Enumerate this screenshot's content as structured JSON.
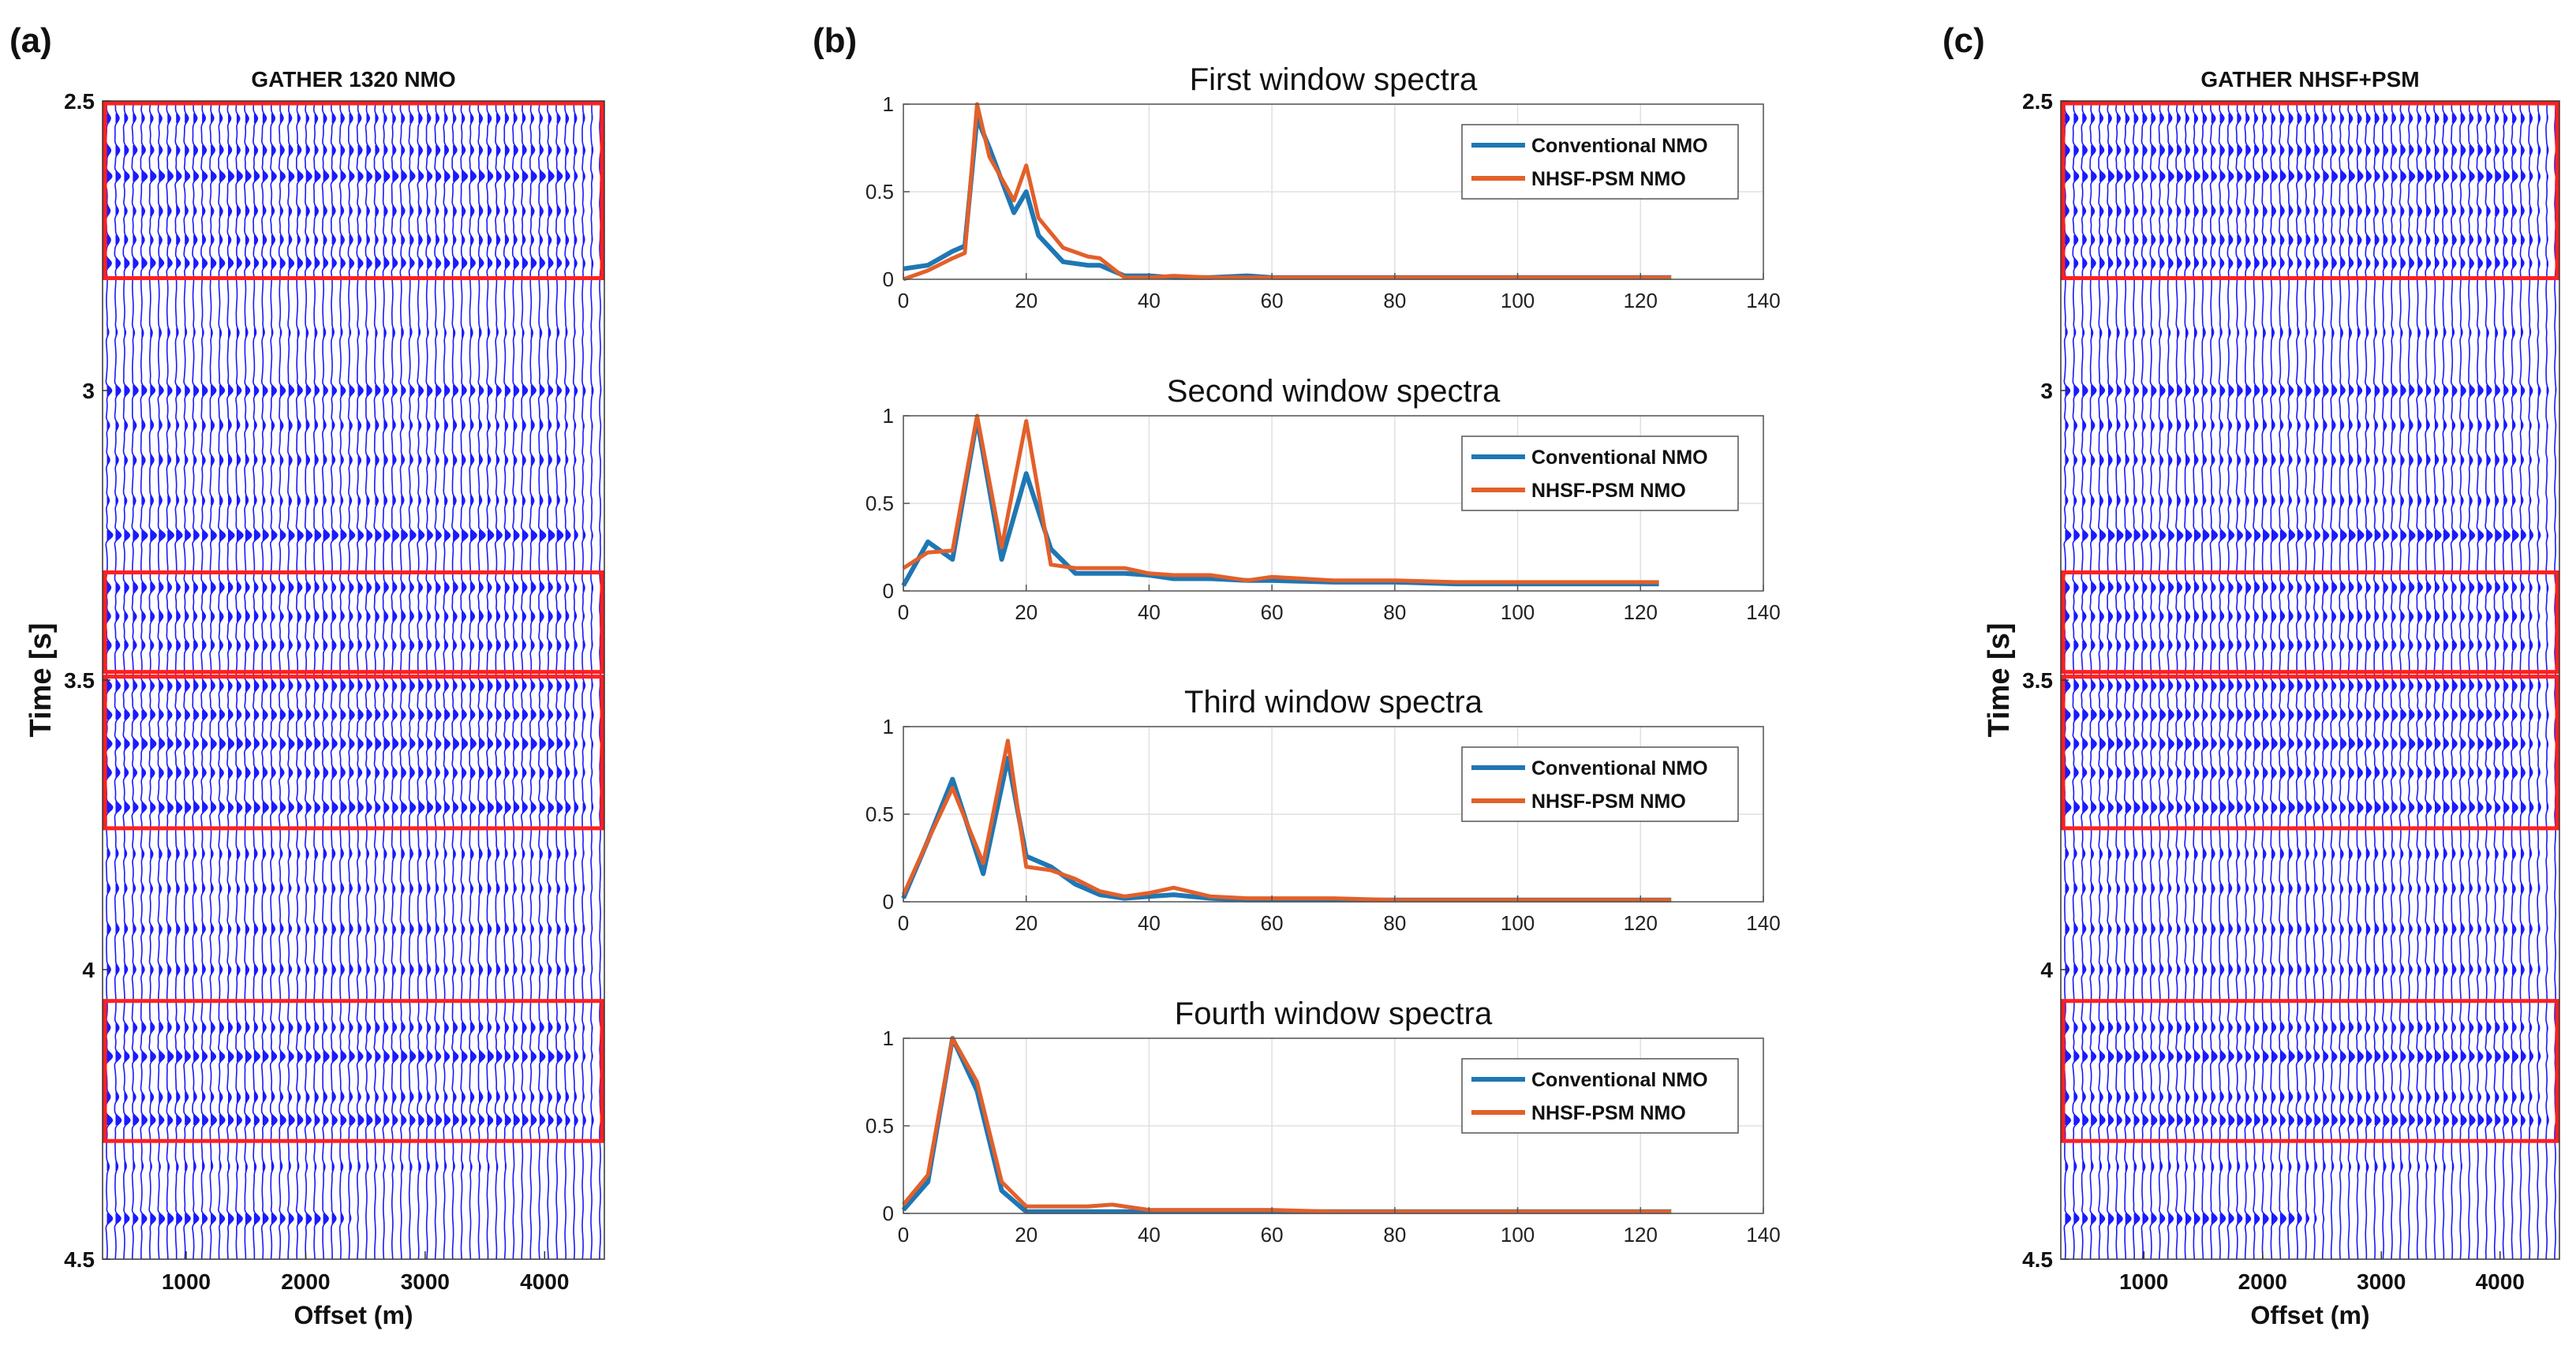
{
  "panel_labels": [
    "(a)",
    "(b)",
    "(c)"
  ],
  "colors": {
    "wiggle": "#1a1aff",
    "box": "#ff2020",
    "conventional": "#1f77b4",
    "nhsf": "#e2602a",
    "grid": "#e0e0e0",
    "axis": "#333333"
  },
  "chart_data": [
    {
      "type": "seismic-gather",
      "panel": "(a)",
      "title": "GATHER 1320 NMO",
      "xlabel": "Offset (m)",
      "ylabel": "Time [s]",
      "xlim": [
        300,
        4500
      ],
      "ylim": [
        2.5,
        4.5
      ],
      "xticks": [
        1000,
        2000,
        3000,
        4000
      ],
      "yticks": [
        2.5,
        3,
        3.5,
        4,
        4.5
      ],
      "ytick_labels": [
        "2.5",
        "3",
        "3.5",
        "4",
        "4.5"
      ],
      "highlight_windows": [
        [
          2.5,
          2.81
        ],
        [
          3.31,
          3.49
        ],
        [
          3.49,
          3.76
        ],
        [
          4.05,
          4.3
        ]
      ],
      "events": [
        {
          "t": 2.53,
          "amp": 0.6,
          "end": 4500
        },
        {
          "t": 2.585,
          "amp": 0.7,
          "end": 4500
        },
        {
          "t": 2.63,
          "amp": 1.0,
          "end": 4500
        },
        {
          "t": 2.69,
          "amp": 0.6,
          "end": 4500
        },
        {
          "t": 2.74,
          "amp": 0.6,
          "end": 4500
        },
        {
          "t": 2.78,
          "amp": 0.9,
          "end": 4500
        },
        {
          "t": 2.9,
          "amp": 0.35,
          "end": 4500
        },
        {
          "t": 3.0,
          "amp": 0.9,
          "end": 4500
        },
        {
          "t": 3.06,
          "amp": 0.55,
          "end": 4500
        },
        {
          "t": 3.12,
          "amp": 0.6,
          "end": 4500
        },
        {
          "t": 3.19,
          "amp": 0.5,
          "end": 4500
        },
        {
          "t": 3.25,
          "amp": 1.1,
          "end": 4500
        },
        {
          "t": 3.34,
          "amp": 0.8,
          "end": 4500
        },
        {
          "t": 3.39,
          "amp": 0.7,
          "end": 4500
        },
        {
          "t": 3.44,
          "amp": 0.7,
          "end": 4500
        },
        {
          "t": 3.51,
          "amp": 0.8,
          "end": 4500
        },
        {
          "t": 3.56,
          "amp": 0.9,
          "end": 4500
        },
        {
          "t": 3.61,
          "amp": 1.0,
          "end": 4500
        },
        {
          "t": 3.66,
          "amp": 0.8,
          "end": 4500
        },
        {
          "t": 3.72,
          "amp": 1.0,
          "end": 4500
        },
        {
          "t": 3.8,
          "amp": 0.5,
          "end": 4500
        },
        {
          "t": 3.86,
          "amp": 0.5,
          "end": 4500
        },
        {
          "t": 3.93,
          "amp": 0.6,
          "end": 4500
        },
        {
          "t": 4.0,
          "amp": 0.6,
          "end": 4500
        },
        {
          "t": 4.1,
          "amp": 0.7,
          "end": 4500
        },
        {
          "t": 4.15,
          "amp": 1.0,
          "end": 4500
        },
        {
          "t": 4.22,
          "amp": 0.6,
          "end": 4500
        },
        {
          "t": 4.26,
          "amp": 1.0,
          "end": 4500
        },
        {
          "t": 4.34,
          "amp": 0.35,
          "end": 3800
        },
        {
          "t": 4.43,
          "amp": 1.0,
          "end": 2500
        }
      ]
    },
    {
      "type": "line",
      "panel": "(b)",
      "title": "First window spectra",
      "xlim": [
        0,
        140
      ],
      "ylim": [
        0,
        1
      ],
      "xticks": [
        0,
        20,
        40,
        60,
        80,
        100,
        120,
        140
      ],
      "yticks": [
        0,
        0.5,
        1
      ],
      "ytick_labels": [
        "0",
        "0.5",
        "1"
      ],
      "legend_loc": "top-right",
      "series": [
        {
          "name": "Conventional NMO",
          "color": "#1f77b4",
          "x": [
            0,
            4,
            8,
            10,
            12,
            14,
            18,
            20,
            22,
            26,
            30,
            32,
            36,
            40,
            44,
            50,
            56,
            60,
            70,
            80,
            90,
            100,
            110,
            120,
            125
          ],
          "y": [
            0.06,
            0.08,
            0.16,
            0.19,
            0.92,
            0.75,
            0.38,
            0.5,
            0.25,
            0.1,
            0.08,
            0.08,
            0.02,
            0.02,
            0.01,
            0.01,
            0.02,
            0.01,
            0.01,
            0.01,
            0.01,
            0.01,
            0.01,
            0.01,
            0.01
          ]
        },
        {
          "name": "NHSF-PSM NMO",
          "color": "#e2602a",
          "x": [
            0,
            4,
            8,
            10,
            12,
            14,
            18,
            20,
            22,
            26,
            30,
            32,
            36,
            40,
            44,
            50,
            56,
            60,
            70,
            80,
            90,
            100,
            110,
            120,
            125
          ],
          "y": [
            0.0,
            0.05,
            0.12,
            0.15,
            1.0,
            0.7,
            0.45,
            0.65,
            0.35,
            0.18,
            0.13,
            0.12,
            0.01,
            0.01,
            0.02,
            0.01,
            0.01,
            0.01,
            0.01,
            0.01,
            0.01,
            0.01,
            0.01,
            0.01,
            0.01
          ]
        }
      ]
    },
    {
      "type": "line",
      "panel": "(b)",
      "title": "Second window spectra",
      "xlim": [
        0,
        140
      ],
      "ylim": [
        0,
        1
      ],
      "xticks": [
        0,
        20,
        40,
        60,
        80,
        100,
        120,
        140
      ],
      "yticks": [
        0,
        0.5,
        1
      ],
      "ytick_labels": [
        "0",
        "0.5",
        "1"
      ],
      "legend_loc": "top-right",
      "series": [
        {
          "name": "Conventional NMO",
          "color": "#1f77b4",
          "x": [
            0,
            4,
            8,
            12,
            16,
            20,
            24,
            28,
            32,
            36,
            40,
            44,
            50,
            56,
            60,
            70,
            80,
            90,
            100,
            110,
            120,
            123
          ],
          "y": [
            0.03,
            0.28,
            0.18,
            0.98,
            0.18,
            0.67,
            0.24,
            0.1,
            0.1,
            0.1,
            0.09,
            0.07,
            0.07,
            0.06,
            0.06,
            0.05,
            0.05,
            0.04,
            0.04,
            0.04,
            0.04,
            0.04
          ]
        },
        {
          "name": "NHSF-PSM NMO",
          "color": "#e2602a",
          "x": [
            0,
            4,
            8,
            12,
            16,
            20,
            24,
            28,
            32,
            36,
            40,
            44,
            50,
            56,
            60,
            70,
            80,
            90,
            100,
            110,
            120,
            123
          ],
          "y": [
            0.13,
            0.22,
            0.23,
            1.0,
            0.25,
            0.97,
            0.15,
            0.13,
            0.13,
            0.13,
            0.1,
            0.09,
            0.09,
            0.06,
            0.08,
            0.06,
            0.06,
            0.05,
            0.05,
            0.05,
            0.05,
            0.05
          ]
        }
      ]
    },
    {
      "type": "line",
      "panel": "(b)",
      "title": "Third window spectra",
      "xlim": [
        0,
        140
      ],
      "ylim": [
        0,
        1
      ],
      "xticks": [
        0,
        20,
        40,
        60,
        80,
        100,
        120,
        140
      ],
      "yticks": [
        0,
        0.5,
        1
      ],
      "ytick_labels": [
        "0",
        "0.5",
        "1"
      ],
      "legend_loc": "top-right",
      "series": [
        {
          "name": "Conventional NMO",
          "color": "#1f77b4",
          "x": [
            0,
            4,
            8,
            13,
            17,
            20,
            24,
            28,
            32,
            36,
            40,
            44,
            50,
            56,
            60,
            70,
            80,
            90,
            100,
            110,
            120,
            125
          ],
          "y": [
            0.02,
            0.35,
            0.7,
            0.16,
            0.82,
            0.26,
            0.2,
            0.1,
            0.04,
            0.02,
            0.03,
            0.04,
            0.02,
            0.01,
            0.01,
            0.01,
            0.01,
            0.01,
            0.01,
            0.01,
            0.01,
            0.01
          ]
        },
        {
          "name": "NHSF-PSM NMO",
          "color": "#e2602a",
          "x": [
            0,
            4,
            8,
            13,
            17,
            20,
            24,
            28,
            32,
            36,
            40,
            44,
            50,
            56,
            60,
            70,
            80,
            90,
            100,
            110,
            120,
            125
          ],
          "y": [
            0.04,
            0.35,
            0.65,
            0.22,
            0.92,
            0.2,
            0.18,
            0.13,
            0.06,
            0.03,
            0.05,
            0.08,
            0.03,
            0.02,
            0.02,
            0.02,
            0.01,
            0.01,
            0.01,
            0.01,
            0.01,
            0.01
          ]
        }
      ]
    },
    {
      "type": "line",
      "panel": "(b)",
      "title": "Fourth window spectra",
      "xlim": [
        0,
        140
      ],
      "ylim": [
        0,
        1
      ],
      "xticks": [
        0,
        20,
        40,
        60,
        80,
        100,
        120,
        140
      ],
      "yticks": [
        0,
        0.5,
        1
      ],
      "ytick_labels": [
        "0",
        "0.5",
        "1"
      ],
      "legend_loc": "top-right",
      "series": [
        {
          "name": "Conventional NMO",
          "color": "#1f77b4",
          "x": [
            0,
            4,
            8,
            12,
            16,
            20,
            24,
            30,
            34,
            40,
            50,
            60,
            70,
            80,
            90,
            100,
            110,
            120,
            125
          ],
          "y": [
            0.02,
            0.18,
            1.0,
            0.7,
            0.13,
            0.01,
            0.01,
            0.01,
            0.01,
            0.01,
            0.01,
            0.01,
            0.01,
            0.01,
            0.01,
            0.01,
            0.01,
            0.01,
            0.01
          ]
        },
        {
          "name": "NHSF-PSM NMO",
          "color": "#e2602a",
          "x": [
            0,
            4,
            8,
            12,
            16,
            20,
            24,
            30,
            34,
            40,
            50,
            60,
            70,
            80,
            90,
            100,
            110,
            120,
            125
          ],
          "y": [
            0.05,
            0.22,
            1.0,
            0.75,
            0.18,
            0.04,
            0.04,
            0.04,
            0.05,
            0.02,
            0.02,
            0.02,
            0.01,
            0.01,
            0.01,
            0.01,
            0.01,
            0.01,
            0.01
          ]
        }
      ]
    },
    {
      "type": "seismic-gather",
      "panel": "(c)",
      "title": "GATHER NHSF+PSM",
      "xlabel": "Offset (m)",
      "ylabel": "Time [s]",
      "xlim": [
        300,
        4500
      ],
      "ylim": [
        2.5,
        4.5
      ],
      "xticks": [
        1000,
        2000,
        3000,
        4000
      ],
      "yticks": [
        2.5,
        3,
        3.5,
        4,
        4.5
      ],
      "ytick_labels": [
        "2.5",
        "3",
        "3.5",
        "4",
        "4.5"
      ],
      "highlight_windows": [
        [
          2.5,
          2.81
        ],
        [
          3.31,
          3.49
        ],
        [
          3.49,
          3.76
        ],
        [
          4.05,
          4.3
        ]
      ],
      "events": [
        {
          "t": 2.53,
          "amp": 0.7,
          "end": 4500
        },
        {
          "t": 2.585,
          "amp": 0.8,
          "end": 4500
        },
        {
          "t": 2.63,
          "amp": 1.0,
          "end": 4500
        },
        {
          "t": 2.69,
          "amp": 0.7,
          "end": 4500
        },
        {
          "t": 2.74,
          "amp": 0.7,
          "end": 4500
        },
        {
          "t": 2.78,
          "amp": 0.8,
          "end": 4500
        },
        {
          "t": 2.9,
          "amp": 0.4,
          "end": 4500
        },
        {
          "t": 3.0,
          "amp": 0.9,
          "end": 4500
        },
        {
          "t": 3.06,
          "amp": 0.6,
          "end": 4500
        },
        {
          "t": 3.12,
          "amp": 0.65,
          "end": 4500
        },
        {
          "t": 3.19,
          "amp": 0.55,
          "end": 4500
        },
        {
          "t": 3.25,
          "amp": 1.1,
          "end": 4500
        },
        {
          "t": 3.34,
          "amp": 0.85,
          "end": 4500
        },
        {
          "t": 3.39,
          "amp": 0.75,
          "end": 4500
        },
        {
          "t": 3.44,
          "amp": 0.75,
          "end": 4500
        },
        {
          "t": 3.51,
          "amp": 0.85,
          "end": 4500
        },
        {
          "t": 3.56,
          "amp": 0.95,
          "end": 4500
        },
        {
          "t": 3.61,
          "amp": 1.0,
          "end": 4500
        },
        {
          "t": 3.66,
          "amp": 0.85,
          "end": 4500
        },
        {
          "t": 3.72,
          "amp": 1.0,
          "end": 4500
        },
        {
          "t": 3.8,
          "amp": 0.55,
          "end": 4500
        },
        {
          "t": 3.86,
          "amp": 0.55,
          "end": 4500
        },
        {
          "t": 3.93,
          "amp": 0.65,
          "end": 4500
        },
        {
          "t": 4.0,
          "amp": 0.65,
          "end": 4500
        },
        {
          "t": 4.1,
          "amp": 0.75,
          "end": 4500
        },
        {
          "t": 4.15,
          "amp": 1.0,
          "end": 4500
        },
        {
          "t": 4.22,
          "amp": 0.65,
          "end": 4500
        },
        {
          "t": 4.26,
          "amp": 1.0,
          "end": 4500
        },
        {
          "t": 4.34,
          "amp": 0.4,
          "end": 3800
        },
        {
          "t": 4.43,
          "amp": 1.0,
          "end": 2600
        }
      ]
    }
  ]
}
